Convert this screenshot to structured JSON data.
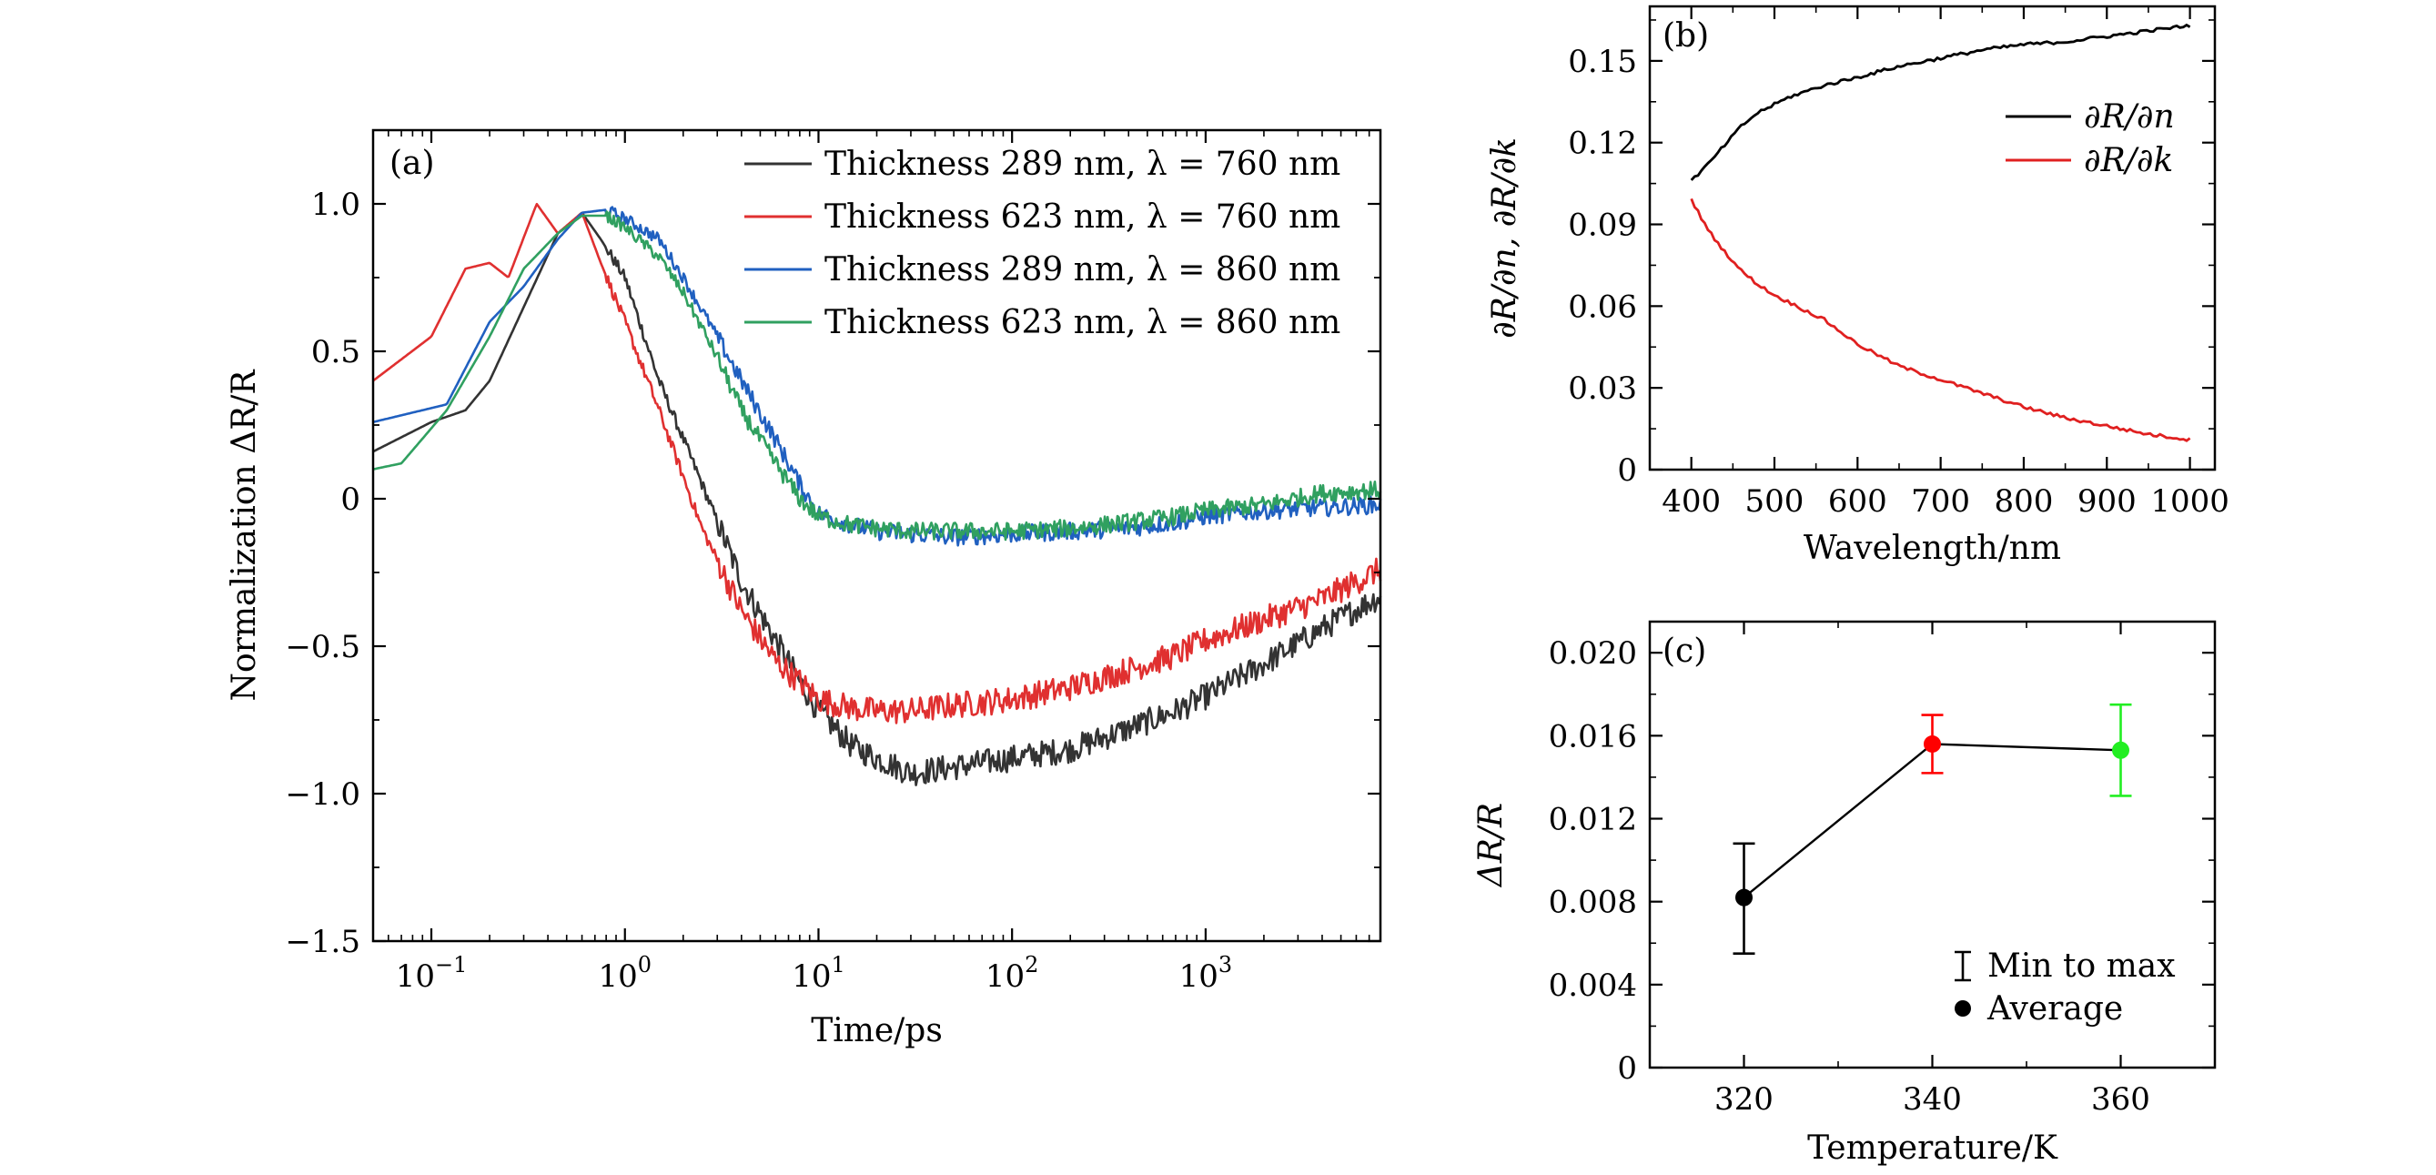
{
  "chart_data": [
    {
      "panel": "(a)",
      "type": "line",
      "xscale": "log",
      "xlim": [
        0.05,
        8000
      ],
      "ylim": [
        -1.5,
        1.25
      ],
      "xlabel": "Time/ps",
      "ylabel": "Normalization ΔR/R",
      "yticks": [
        -1.5,
        -1.0,
        -0.5,
        0,
        0.5,
        1.0
      ],
      "ytick_labels": [
        "−1.5",
        "−1.0",
        "−0.5",
        "0",
        "0.5",
        "1.0"
      ],
      "xticks": [
        0.1,
        1,
        10,
        100,
        1000
      ],
      "xtick_bases": [
        "10",
        "10",
        "10",
        "10",
        "10"
      ],
      "xtick_exps": [
        "−1",
        "0",
        "1",
        "2",
        "3"
      ],
      "legend_position": "top-right",
      "series": [
        {
          "name": "Thickness 289 nm, λ = 760 nm",
          "color": "#333333",
          "x": [
            0.05,
            0.1,
            0.15,
            0.2,
            0.3,
            0.45,
            0.6,
            0.75,
            1.0,
            1.5,
            2.5,
            4,
            6,
            8,
            10,
            15,
            20,
            30,
            50,
            100,
            200,
            400,
            700,
            1000,
            2000,
            4000,
            8000
          ],
          "y": [
            0.16,
            0.26,
            0.3,
            0.4,
            0.65,
            0.9,
            0.97,
            0.88,
            0.75,
            0.4,
            0.05,
            -0.28,
            -0.48,
            -0.62,
            -0.72,
            -0.84,
            -0.88,
            -0.93,
            -0.91,
            -0.88,
            -0.85,
            -0.78,
            -0.72,
            -0.67,
            -0.56,
            -0.44,
            -0.33
          ]
        },
        {
          "name": "Thickness 623 nm, λ = 760 nm",
          "color": "#e03030",
          "x": [
            0.05,
            0.1,
            0.15,
            0.2,
            0.25,
            0.35,
            0.45,
            0.6,
            0.75,
            1.0,
            1.5,
            2.5,
            4,
            6,
            8,
            10,
            15,
            20,
            30,
            50,
            100,
            200,
            400,
            700,
            1000,
            2000,
            4000,
            8000
          ],
          "y": [
            0.4,
            0.55,
            0.78,
            0.8,
            0.75,
            1.0,
            0.9,
            0.97,
            0.8,
            0.6,
            0.3,
            -0.1,
            -0.38,
            -0.55,
            -0.62,
            -0.68,
            -0.71,
            -0.72,
            -0.72,
            -0.7,
            -0.68,
            -0.64,
            -0.58,
            -0.53,
            -0.48,
            -0.41,
            -0.34,
            -0.24
          ]
        },
        {
          "name": "Thickness 289 nm, λ = 860 nm",
          "color": "#2060c0",
          "x": [
            0.05,
            0.12,
            0.2,
            0.3,
            0.45,
            0.6,
            0.8,
            1.0,
            1.5,
            2,
            3,
            4,
            6,
            8,
            10,
            15,
            20,
            30,
            50,
            100,
            200,
            400,
            700,
            1000,
            2000,
            4000,
            8000
          ],
          "y": [
            0.26,
            0.32,
            0.6,
            0.72,
            0.88,
            0.97,
            0.98,
            0.95,
            0.88,
            0.75,
            0.55,
            0.4,
            0.2,
            0.05,
            -0.05,
            -0.09,
            -0.11,
            -0.12,
            -0.13,
            -0.12,
            -0.11,
            -0.1,
            -0.08,
            -0.06,
            -0.04,
            -0.03,
            -0.02
          ]
        },
        {
          "name": "Thickness 623 nm, λ = 860 nm",
          "color": "#30a060",
          "x": [
            0.05,
            0.07,
            0.12,
            0.2,
            0.3,
            0.45,
            0.6,
            0.8,
            1.0,
            1.5,
            2,
            3,
            4,
            6,
            8,
            10,
            15,
            20,
            30,
            50,
            100,
            200,
            400,
            700,
            1000,
            2000,
            4000,
            8000
          ],
          "y": [
            0.1,
            0.12,
            0.3,
            0.55,
            0.78,
            0.9,
            0.96,
            0.96,
            0.92,
            0.82,
            0.7,
            0.48,
            0.3,
            0.12,
            0.0,
            -0.06,
            -0.09,
            -0.1,
            -0.11,
            -0.11,
            -0.11,
            -0.1,
            -0.08,
            -0.06,
            -0.04,
            -0.02,
            0.02,
            0.03
          ]
        }
      ]
    },
    {
      "panel": "(b)",
      "type": "line",
      "xlim": [
        350,
        1030
      ],
      "ylim": [
        0,
        0.17
      ],
      "xlabel": "Wavelength/nm",
      "ylabel": "∂R/∂n, ∂R/∂k",
      "xticks": [
        400,
        500,
        600,
        700,
        800,
        900,
        1000
      ],
      "yticks": [
        0,
        0.03,
        0.06,
        0.09,
        0.12,
        0.15
      ],
      "ytick_labels": [
        "0",
        "0.03",
        "0.06",
        "0.09",
        "0.12",
        "0.15"
      ],
      "legend_position": "top-right",
      "series": [
        {
          "name": "∂R/∂n",
          "color": "#000000",
          "x": [
            400,
            420,
            440,
            460,
            480,
            500,
            520,
            540,
            560,
            600,
            650,
            700,
            750,
            800,
            850,
            900,
            950,
            1000
          ],
          "y": [
            0.106,
            0.112,
            0.119,
            0.126,
            0.131,
            0.134,
            0.137,
            0.139,
            0.141,
            0.144,
            0.148,
            0.151,
            0.154,
            0.156,
            0.157,
            0.159,
            0.161,
            0.163
          ]
        },
        {
          "name": "∂R/∂k",
          "color": "#e02020",
          "x": [
            400,
            420,
            440,
            460,
            480,
            500,
            520,
            540,
            560,
            600,
            650,
            700,
            750,
            800,
            850,
            900,
            950,
            1000
          ],
          "y": [
            0.099,
            0.088,
            0.08,
            0.073,
            0.068,
            0.064,
            0.061,
            0.058,
            0.055,
            0.046,
            0.038,
            0.033,
            0.028,
            0.023,
            0.019,
            0.016,
            0.013,
            0.011
          ]
        }
      ]
    },
    {
      "panel": "(c)",
      "type": "scatter",
      "xlim": [
        310,
        370
      ],
      "ylim": [
        0,
        0.0215
      ],
      "xlabel": "Temperature/K",
      "ylabel": "ΔR/R",
      "xticks": [
        320,
        340,
        360
      ],
      "yticks": [
        0,
        0.004,
        0.008,
        0.012,
        0.016,
        0.02
      ],
      "ytick_labels": [
        "0",
        "0.004",
        "0.008",
        "0.012",
        "0.016",
        "0.020"
      ],
      "legend_position": "bottom-right",
      "legend": [
        "Min to max",
        "Average"
      ],
      "points": [
        {
          "x": 320,
          "y": 0.0082,
          "min": 0.0055,
          "max": 0.0108,
          "color": "#000000"
        },
        {
          "x": 340,
          "y": 0.0156,
          "min": 0.0142,
          "max": 0.017,
          "color": "#ff0000"
        },
        {
          "x": 360,
          "y": 0.0153,
          "min": 0.0131,
          "max": 0.0175,
          "color": "#22ee22"
        }
      ]
    }
  ]
}
